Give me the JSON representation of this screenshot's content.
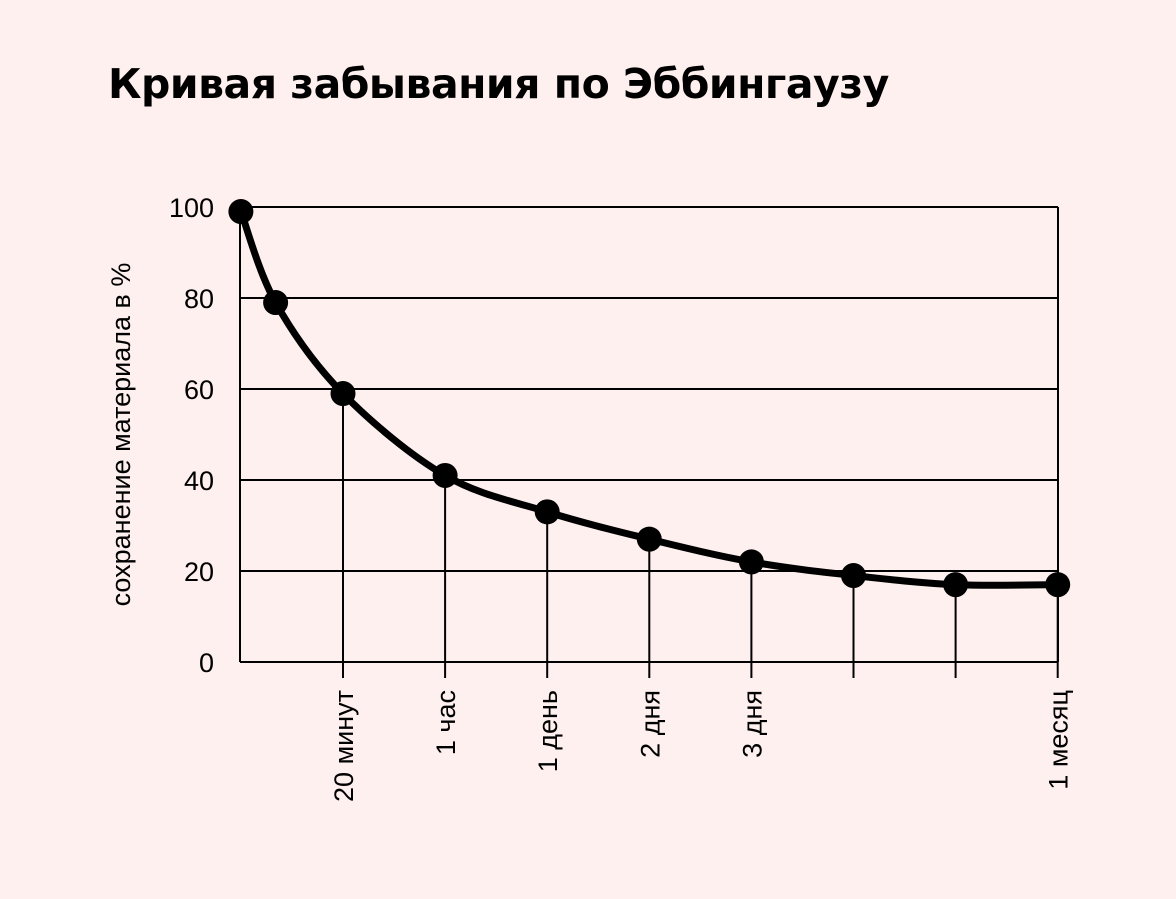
{
  "colors": {
    "background": "#fdf0ef",
    "ink": "#000000"
  },
  "chart_data": {
    "type": "line",
    "title": "Кривая забывания по Эббингаузу",
    "ylabel": "сохранение материала в %",
    "xlabel": "",
    "ylim": [
      0,
      100
    ],
    "yticks": [
      0,
      20,
      40,
      60,
      80,
      100
    ],
    "grid": "horizontal",
    "markers": "filled-circle",
    "x_ticks": [
      {
        "label": "20 минут"
      },
      {
        "label": "1 час"
      },
      {
        "label": "1 день"
      },
      {
        "label": "2 дня"
      },
      {
        "label": "3 дня"
      },
      {
        "label": ""
      },
      {
        "label": ""
      },
      {
        "label": "1 месяц"
      }
    ],
    "series": [
      {
        "points": [
          {
            "tick": -1,
            "value": 99
          },
          {
            "tick": -0.66,
            "value": 79
          },
          {
            "tick": 0,
            "value": 59
          },
          {
            "tick": 1,
            "value": 41
          },
          {
            "tick": 2,
            "value": 33
          },
          {
            "tick": 3,
            "value": 27
          },
          {
            "tick": 4,
            "value": 22
          },
          {
            "tick": 5,
            "value": 19
          },
          {
            "tick": 6,
            "value": 17
          },
          {
            "tick": 7,
            "value": 17
          }
        ]
      }
    ]
  }
}
